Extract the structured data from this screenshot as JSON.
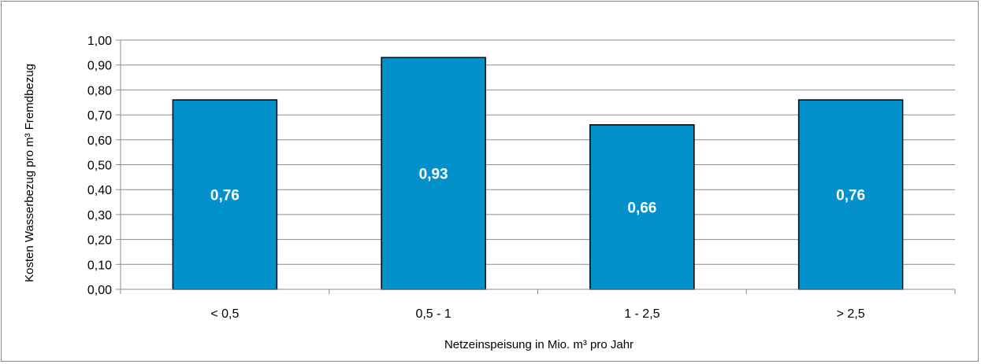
{
  "chart_data": {
    "type": "bar",
    "categories": [
      "< 0,5",
      "0,5 - 1",
      "1 - 2,5",
      "> 2,5"
    ],
    "values": [
      0.76,
      0.93,
      0.66,
      0.76
    ],
    "data_labels": [
      "0,76",
      "0,93",
      "0,66",
      "0,76"
    ],
    "title": "",
    "xlabel": "Netzeinspeisung in Mio. m³ pro Jahr",
    "ylabel": "Kosten Wasserbezug pro m³ Fremdbezug",
    "ylim": [
      0,
      1.0
    ],
    "y_ticks": [
      "0,00",
      "0,10",
      "0,20",
      "0,30",
      "0,40",
      "0,50",
      "0,60",
      "0,70",
      "0,80",
      "0,90",
      "1,00"
    ],
    "grid": true,
    "legend": "none",
    "colors": {
      "bar_fill": "#0391cb",
      "bar_stroke": "#000000",
      "frame_border": "#2aa6dc",
      "gridline": "#8c8c8c"
    }
  }
}
